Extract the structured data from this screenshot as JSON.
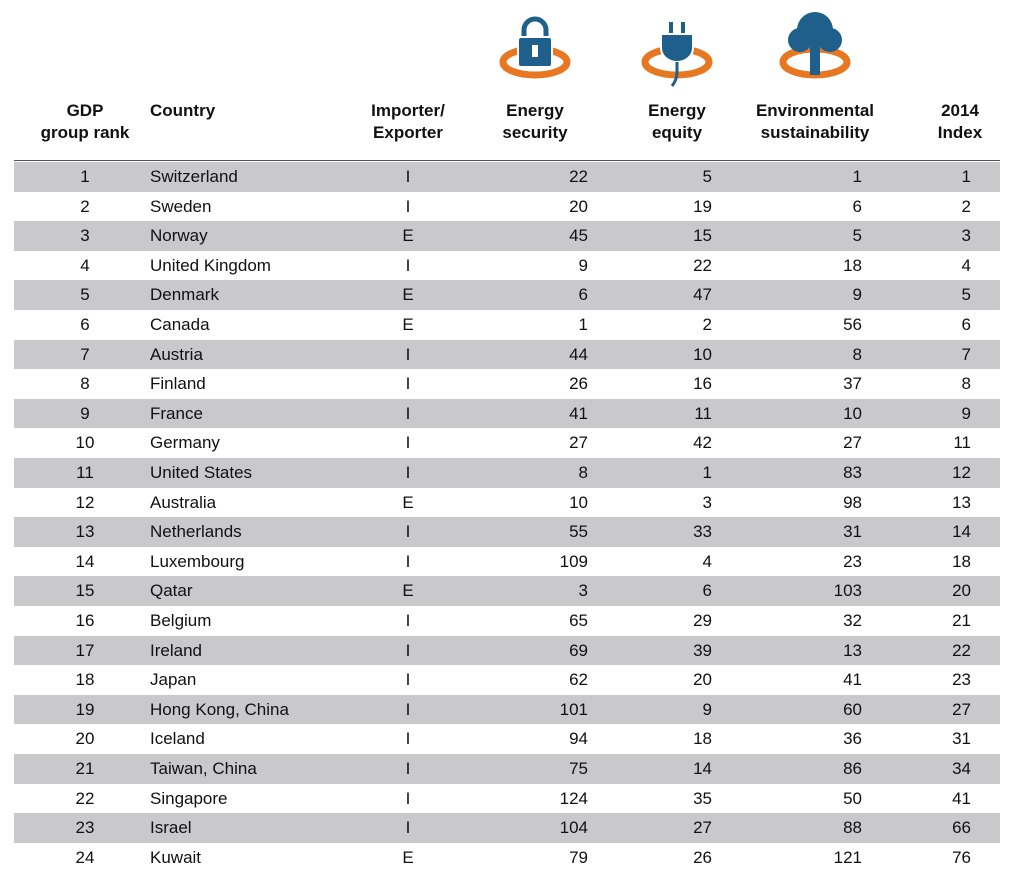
{
  "header": {
    "columns": [
      [
        "GDP",
        "group rank"
      ],
      [
        "Country"
      ],
      [
        "Importer/",
        "Exporter"
      ],
      [
        "Energy",
        "security"
      ],
      [
        "Energy",
        "equity"
      ],
      [
        "Environmental",
        "sustainability"
      ],
      [
        "2014",
        "Index"
      ]
    ]
  },
  "table": {
    "rows": [
      [
        1,
        "Switzerland",
        "I",
        22,
        5,
        1,
        1
      ],
      [
        2,
        "Sweden",
        "I",
        20,
        19,
        6,
        2
      ],
      [
        3,
        "Norway",
        "E",
        45,
        15,
        5,
        3
      ],
      [
        4,
        "United Kingdom",
        "I",
        9,
        22,
        18,
        4
      ],
      [
        5,
        "Denmark",
        "E",
        6,
        47,
        9,
        5
      ],
      [
        6,
        "Canada",
        "E",
        1,
        2,
        56,
        6
      ],
      [
        7,
        "Austria",
        "I",
        44,
        10,
        8,
        7
      ],
      [
        8,
        "Finland",
        "I",
        26,
        16,
        37,
        8
      ],
      [
        9,
        "France",
        "I",
        41,
        11,
        10,
        9
      ],
      [
        10,
        "Germany",
        "I",
        27,
        42,
        27,
        11
      ],
      [
        11,
        "United States",
        "I",
        8,
        1,
        83,
        12
      ],
      [
        12,
        "Australia",
        "E",
        10,
        3,
        98,
        13
      ],
      [
        13,
        "Netherlands",
        "I",
        55,
        33,
        31,
        14
      ],
      [
        14,
        "Luxembourg",
        "I",
        109,
        4,
        23,
        18
      ],
      [
        15,
        "Qatar",
        "E",
        3,
        6,
        103,
        20
      ],
      [
        16,
        "Belgium",
        "I",
        65,
        29,
        32,
        21
      ],
      [
        17,
        "Ireland",
        "I",
        69,
        39,
        13,
        22
      ],
      [
        18,
        "Japan",
        "I",
        62,
        20,
        41,
        23
      ],
      [
        19,
        "Hong Kong, China",
        "I",
        101,
        9,
        60,
        27
      ],
      [
        20,
        "Iceland",
        "I",
        94,
        18,
        36,
        31
      ],
      [
        21,
        "Taiwan, China",
        "I",
        75,
        14,
        86,
        34
      ],
      [
        22,
        "Singapore",
        "I",
        124,
        35,
        50,
        41
      ],
      [
        23,
        "Israel",
        "I",
        104,
        27,
        88,
        66
      ],
      [
        24,
        "Kuwait",
        "E",
        79,
        26,
        121,
        76
      ]
    ]
  }
}
